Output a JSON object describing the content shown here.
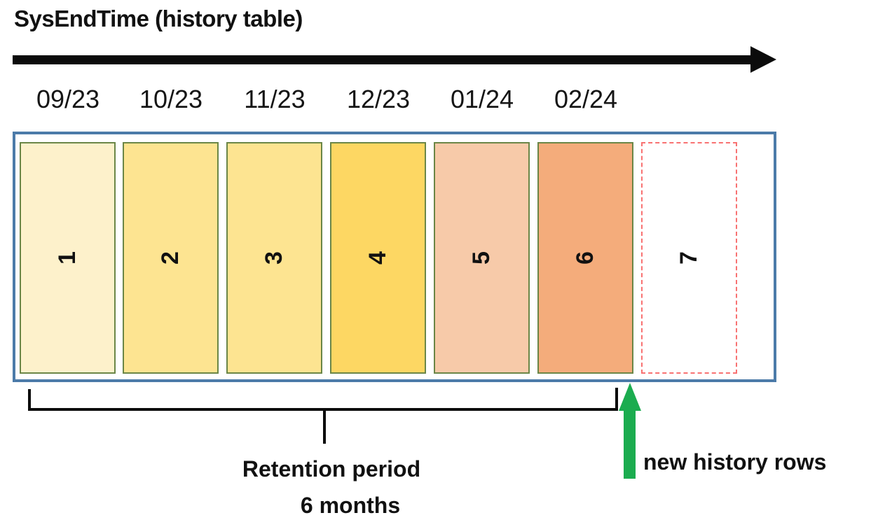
{
  "title": "SysEndTime (history table)",
  "months": [
    "09/23",
    "10/23",
    "11/23",
    "12/23",
    "01/24",
    "02/24"
  ],
  "segments": [
    {
      "label": "1",
      "fill": "#FDF1CB",
      "border": "solid"
    },
    {
      "label": "2",
      "fill": "#FDE491",
      "border": "solid"
    },
    {
      "label": "3",
      "fill": "#FDE491",
      "border": "solid"
    },
    {
      "label": "4",
      "fill": "#FDD763",
      "border": "solid"
    },
    {
      "label": "5",
      "fill": "#F7CAA9",
      "border": "solid"
    },
    {
      "label": "6",
      "fill": "#F4AC7B",
      "border": "solid"
    },
    {
      "label": "7",
      "fill": "#FFFFFF",
      "border": "dashed"
    }
  ],
  "annotations": {
    "retention_line1": "Retention period",
    "retention_line2": "6 months",
    "new_rows": "new history rows"
  },
  "colors": {
    "timeline_arrow": "#0B0B0B",
    "box_border": "#4C7BA9",
    "segment_border": "#6B8647",
    "dashed_segment_border": "#F87272",
    "bracket": "#0B0B0B",
    "new_rows_arrow": "#1BAC4F",
    "text": "#111111"
  }
}
